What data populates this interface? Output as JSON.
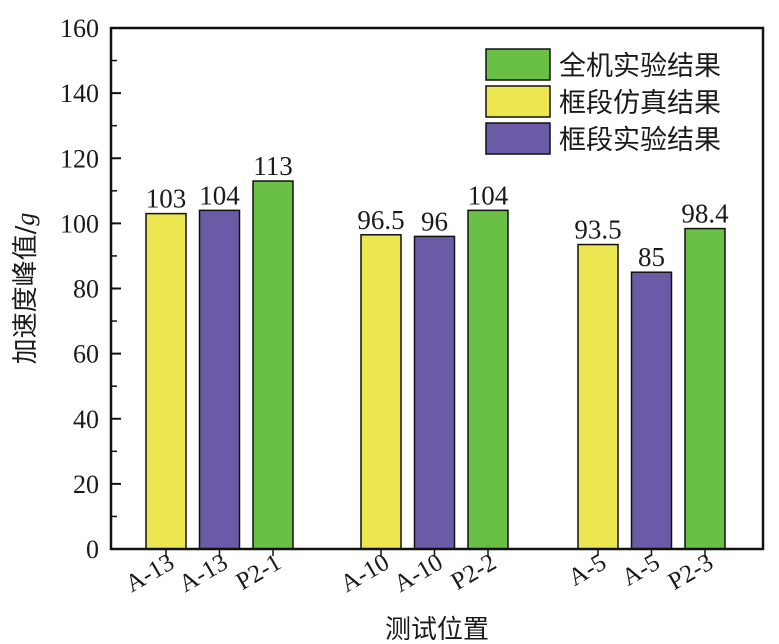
{
  "chart_data": {
    "type": "bar",
    "title": "",
    "xlabel": "测试位置",
    "ylabel": "加速度峰值/",
    "ylabel_unit": "g",
    "ylim": [
      0,
      160
    ],
    "yticks": [
      0,
      20,
      40,
      60,
      80,
      100,
      120,
      140,
      160
    ],
    "legend_position": "top-right",
    "series": [
      {
        "name": "全机实验结果",
        "color": "#6abf45"
      },
      {
        "name": "框段仿真结果",
        "color": "#ece650"
      },
      {
        "name": "框段实验结果",
        "color": "#6b5aa6"
      }
    ],
    "groups": [
      {
        "bars": [
          {
            "label": "A-13",
            "series": "框段仿真结果",
            "value": 103,
            "value_label": "103"
          },
          {
            "label": "A-13",
            "series": "框段实验结果",
            "value": 104,
            "value_label": "104"
          },
          {
            "label": "P2-1",
            "series": "全机实验结果",
            "value": 113,
            "value_label": "113"
          }
        ]
      },
      {
        "bars": [
          {
            "label": "A-10",
            "series": "框段仿真结果",
            "value": 96.5,
            "value_label": "96.5"
          },
          {
            "label": "A-10",
            "series": "框段实验结果",
            "value": 96,
            "value_label": "96"
          },
          {
            "label": "P2-2",
            "series": "全机实验结果",
            "value": 104,
            "value_label": "104"
          }
        ]
      },
      {
        "bars": [
          {
            "label": "A-5",
            "series": "框段仿真结果",
            "value": 93.5,
            "value_label": "93.5"
          },
          {
            "label": "A-5",
            "series": "框段实验结果",
            "value": 85,
            "value_label": "85"
          },
          {
            "label": "P2-3",
            "series": "全机实验结果",
            "value": 98.4,
            "value_label": "98.4"
          }
        ]
      }
    ]
  }
}
